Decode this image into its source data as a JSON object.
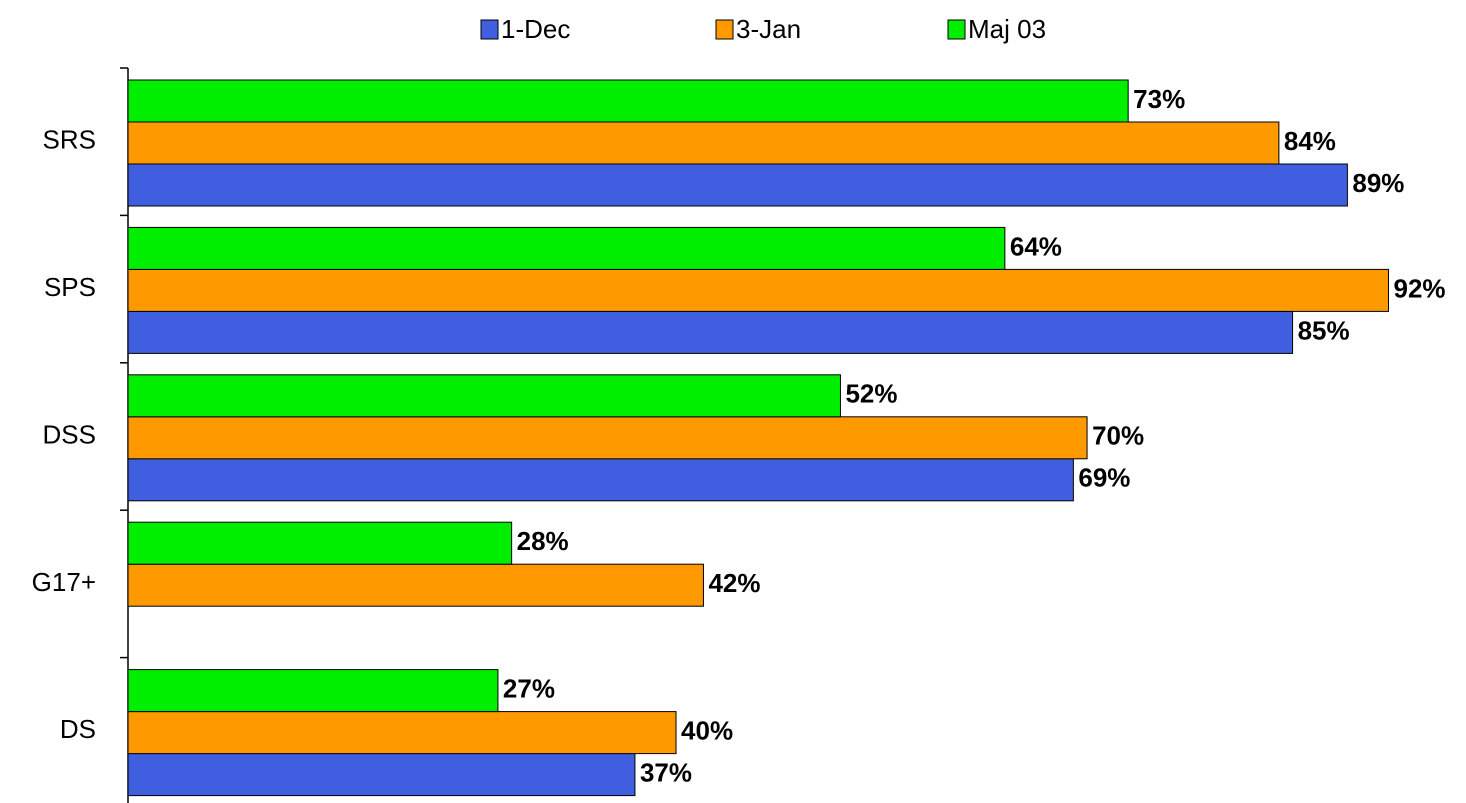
{
  "chart_data": {
    "type": "hbar",
    "categories": [
      "SRS",
      "SPS",
      "DSS",
      "G17+",
      "DS"
    ],
    "series": [
      {
        "name": "1-Dec",
        "color": "#3f5fe0",
        "values": [
          89,
          85,
          69,
          null,
          37
        ],
        "value_labels": [
          "89%",
          "85%",
          "69%",
          null,
          "37%"
        ]
      },
      {
        "name": "3-Jan",
        "color": "#ff9900",
        "values": [
          84,
          92,
          70,
          42,
          40
        ],
        "value_labels": [
          "84%",
          "92%",
          "70%",
          "42%",
          "40%"
        ]
      },
      {
        "name": "Maj 03",
        "color": "#00ee00",
        "values": [
          73,
          64,
          52,
          28,
          27
        ],
        "value_labels": [
          "73%",
          "64%",
          "52%",
          "28%",
          "27%"
        ]
      }
    ],
    "xlim": [
      0,
      97
    ],
    "legend": "top"
  }
}
